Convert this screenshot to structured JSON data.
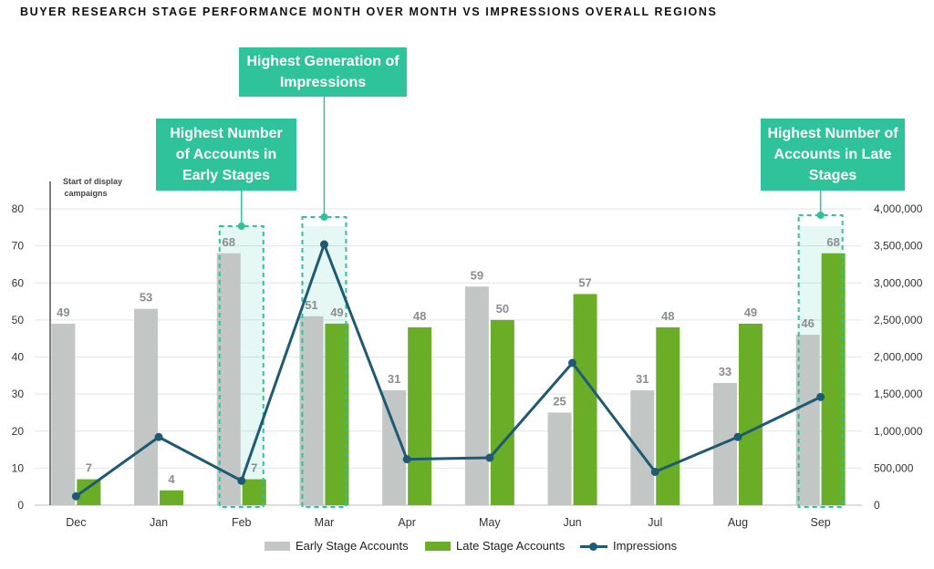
{
  "title": "BUYER RESEARCH STAGE PERFORMANCE MONTH OVER MONTH VS IMPRESSIONS OVERALL REGIONS",
  "annotation": "Start of display campaigns",
  "callouts": {
    "early": "Highest Number of Accounts in Early Stages",
    "impressions": "Highest Generation of Impressions",
    "late": "Highest Number of Accounts in Late Stages"
  },
  "legend": {
    "early": "Early Stage Accounts",
    "late": "Late Stage Accounts",
    "impressions": "Impressions"
  },
  "colors": {
    "early": "#c2c7c5",
    "late": "#6aae27",
    "impressions": "#1f5a74",
    "accent": "#2ec39a"
  },
  "chart_data": {
    "type": "bar",
    "categories": [
      "Dec",
      "Jan",
      "Feb",
      "Mar",
      "Apr",
      "May",
      "Jun",
      "Jul",
      "Aug",
      "Sep"
    ],
    "series": [
      {
        "name": "Early Stage Accounts",
        "values": [
          49,
          53,
          68,
          51,
          31,
          59,
          25,
          31,
          33,
          46
        ],
        "axis": "left"
      },
      {
        "name": "Late Stage Accounts",
        "values": [
          7,
          4,
          7,
          49,
          48,
          50,
          57,
          48,
          49,
          68
        ],
        "axis": "left"
      },
      {
        "name": "Impressions",
        "type": "line",
        "values": [
          120000,
          920000,
          330000,
          3520000,
          620000,
          640000,
          1920000,
          450000,
          920000,
          1460000
        ],
        "axis": "right"
      }
    ],
    "ylim": [
      0,
      80
    ],
    "y_ticks": [
      0,
      10,
      20,
      30,
      40,
      50,
      60,
      70,
      80
    ],
    "y2lim": [
      0,
      4000000
    ],
    "y2_ticks": [
      "0",
      "500,000",
      "1,000,000",
      "1,500,000",
      "2,000,000",
      "2,500,000",
      "3,000,000",
      "3,500,000",
      "4,000,000"
    ],
    "highlighted": [
      "Feb",
      "Mar",
      "Sep"
    ],
    "grid": true,
    "legend_position": "bottom"
  }
}
